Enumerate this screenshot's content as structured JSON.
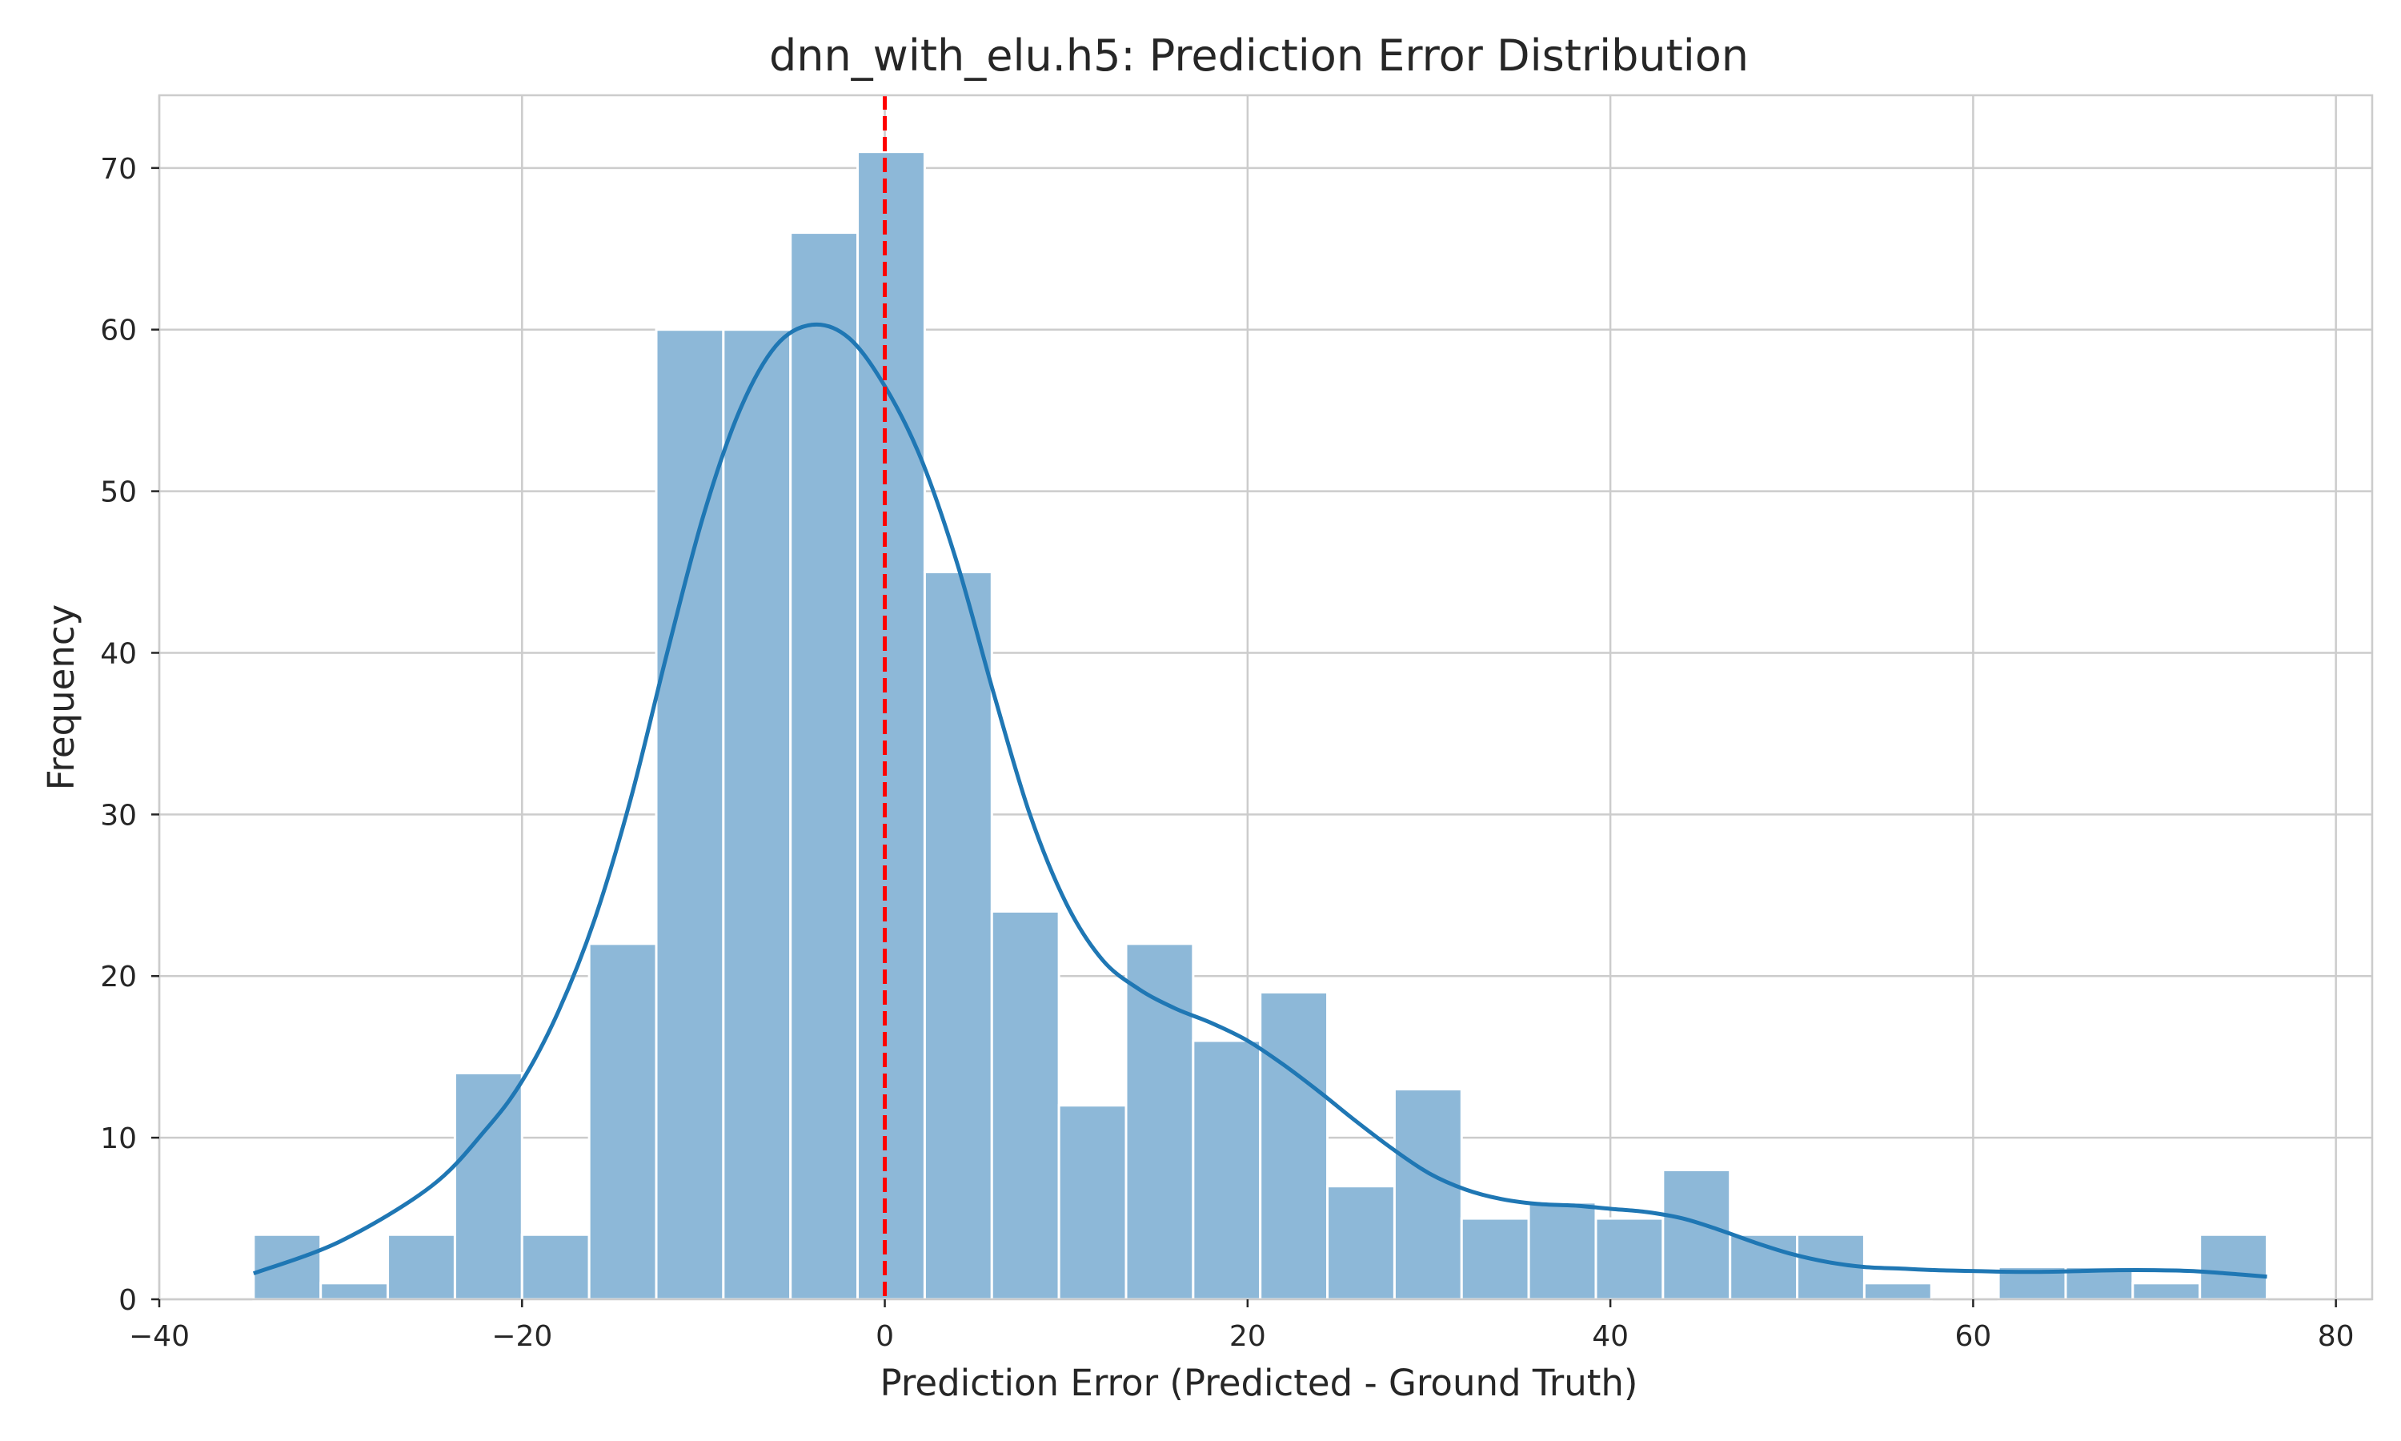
{
  "chart_data": {
    "type": "bar",
    "title": "dnn_with_elu.h5: Prediction Error Distribution",
    "xlabel": "Prediction Error (Predicted - Ground Truth)",
    "ylabel": "Frequency",
    "xlim": [
      -40,
      82
    ],
    "ylim": [
      0,
      74.5
    ],
    "xticks": [
      -40,
      -20,
      0,
      20,
      40,
      60,
      80
    ],
    "xtick_labels": [
      "−40",
      "−20",
      "0",
      "20",
      "40",
      "60",
      "80"
    ],
    "yticks": [
      0,
      10,
      20,
      30,
      40,
      50,
      60,
      70
    ],
    "ytick_labels": [
      "0",
      "10",
      "20",
      "30",
      "40",
      "50",
      "60",
      "70"
    ],
    "grid": true,
    "bins": {
      "edges": [
        -34.8,
        -31.1,
        -27.4,
        -23.7,
        -20.0,
        -16.3,
        -12.6,
        -8.9,
        -5.2,
        -1.5,
        2.2,
        5.9,
        9.6,
        13.3,
        17.0,
        20.7,
        24.4,
        28.1,
        31.8,
        35.5,
        39.2,
        42.9,
        46.6,
        50.3,
        54.0,
        57.7,
        61.4,
        65.1,
        68.8,
        72.5,
        76.2
      ],
      "counts": [
        4,
        1,
        4,
        14,
        4,
        22,
        60,
        60,
        66,
        71,
        45,
        24,
        12,
        22,
        16,
        19,
        7,
        13,
        5,
        6,
        5,
        8,
        4,
        4,
        1,
        0,
        2,
        2,
        1,
        4
      ]
    },
    "kde": {
      "x": [
        -34.8,
        -30,
        -25,
        -22,
        -20,
        -18,
        -16,
        -14,
        -12,
        -10,
        -8,
        -6,
        -4,
        -2,
        0,
        2,
        4,
        6,
        8,
        10,
        12,
        14,
        16,
        18,
        20,
        22,
        24,
        26,
        28,
        30,
        32,
        34,
        36,
        38,
        40,
        42,
        44,
        46,
        48,
        50,
        52,
        54,
        56,
        58,
        60,
        62,
        64,
        66,
        68,
        70,
        72,
        74,
        76.2
      ],
      "y": [
        1.6,
        3.6,
        7.0,
        10.5,
        13.5,
        17.8,
        23.5,
        31.0,
        40.0,
        48.5,
        55.0,
        59.0,
        60.3,
        59.5,
        56.5,
        52.0,
        45.5,
        37.5,
        30.0,
        24.5,
        21.0,
        19.2,
        18.0,
        17.1,
        16.0,
        14.5,
        12.8,
        11.0,
        9.3,
        7.8,
        6.8,
        6.2,
        5.9,
        5.8,
        5.6,
        5.4,
        5.0,
        4.3,
        3.5,
        2.8,
        2.3,
        2.0,
        1.9,
        1.8,
        1.75,
        1.7,
        1.7,
        1.75,
        1.8,
        1.8,
        1.75,
        1.6,
        1.4
      ],
      "color": "#1f77b4"
    },
    "bar_color": "#8db8d8",
    "reference_line": {
      "x": 0,
      "color": "#ff0000",
      "style": "dashed"
    }
  }
}
